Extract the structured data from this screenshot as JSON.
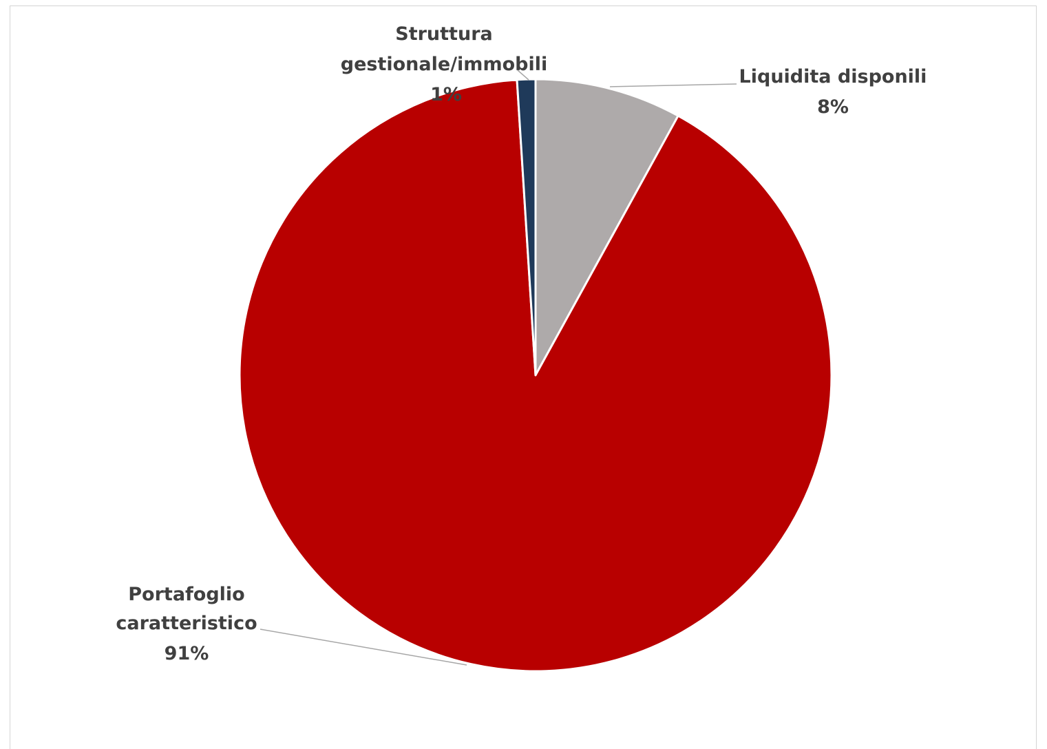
{
  "chart_data": {
    "type": "pie",
    "start_angle_deg": 0,
    "direction": "clockwise",
    "slices": [
      {
        "name": "Liquidita disponili",
        "value": 8,
        "percent_label": "8%",
        "color": "#AEAAAA"
      },
      {
        "name": "Portafoglio caratteristico",
        "label_lines": [
          "Portafoglio",
          "caratteristico"
        ],
        "value": 91,
        "percent_label": "91%",
        "color": "#B80000"
      },
      {
        "name": "Struttura gestionale/immobili",
        "label_lines": [
          "Struttura",
          "gestionale/immobili"
        ],
        "value": 1,
        "percent_label": "1%",
        "color": "#1F3A5A"
      }
    ],
    "legend": "none",
    "data_labels": "outside-with-leader-lines"
  }
}
